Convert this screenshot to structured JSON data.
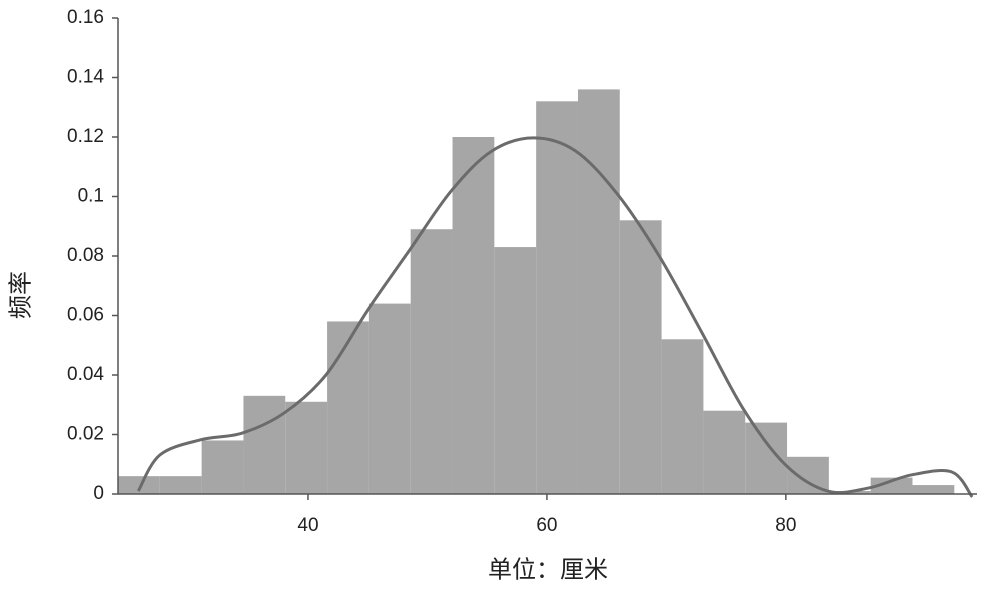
{
  "chart_data": {
    "type": "histogram",
    "x_label": "单位：厘米",
    "y_label": "频率",
    "bins": [
      24.1,
      27.6,
      31.1,
      34.6,
      38.1,
      41.6,
      45.1,
      48.6,
      52.1,
      55.6,
      59.1,
      62.6,
      66.1,
      69.6,
      73.1,
      76.6,
      80.1,
      83.6,
      87.1,
      90.6,
      94.1
    ],
    "values": [
      0.006,
      0.006,
      0.018,
      0.033,
      0.031,
      0.058,
      0.064,
      0.089,
      0.12,
      0.083,
      0.132,
      0.136,
      0.092,
      0.052,
      0.028,
      0.024,
      0.0125,
      0.001,
      0.0055,
      0.003
    ],
    "color": "#a6a6a6",
    "curve": {
      "color": "#6b6b6b",
      "x": [
        25.8,
        27.6,
        31.0,
        34.5,
        38.0,
        41.5,
        45.0,
        48.5,
        52.0,
        55.4,
        58.9,
        62.4,
        65.9,
        69.4,
        72.9,
        76.5,
        80.0,
        83.5,
        86.9,
        90.5,
        93.9,
        95.6
      ],
      "values": [
        0.001,
        0.0131,
        0.0182,
        0.0205,
        0.0272,
        0.04,
        0.0618,
        0.0819,
        0.1019,
        0.1153,
        0.1197,
        0.1153,
        0.1008,
        0.08,
        0.0548,
        0.0282,
        0.0097,
        0.001,
        0.002,
        0.0064,
        0.0074,
        -0.001
      ]
    },
    "xlim": [
      24.1,
      96
    ],
    "ylim": [
      0,
      0.16
    ],
    "xticks": [
      40,
      60,
      80
    ],
    "yticks": [
      0,
      0.02,
      0.04,
      0.06,
      0.08,
      0.1,
      0.12,
      0.14,
      0.16
    ]
  }
}
